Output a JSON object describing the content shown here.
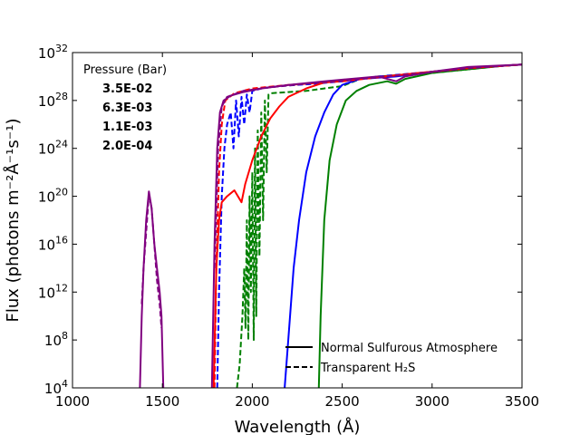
{
  "chart_data": {
    "type": "line",
    "title": "",
    "xlabel": "Wavelength (Å)",
    "ylabel": "Flux (photons m⁻²Å⁻¹s⁻¹)",
    "xlim": [
      1000,
      3500
    ],
    "ylim_log10": [
      4,
      32
    ],
    "yscale": "log",
    "x_ticks": [
      1000,
      1500,
      2000,
      2500,
      3000,
      3500
    ],
    "y_ticks_exp": [
      4,
      8,
      12,
      16,
      20,
      24,
      28,
      32
    ],
    "y_tick_base": "10",
    "legend_pressure": {
      "title": "Pressure (Bar)",
      "entries": [
        {
          "label": "3.5E-02",
          "color": "#008000"
        },
        {
          "label": "6.3E-03",
          "color": "#0000ff"
        },
        {
          "label": "1.1E-03",
          "color": "#ff0000"
        },
        {
          "label": "2.0E-04",
          "color": "#800080"
        }
      ]
    },
    "legend_style": {
      "entries": [
        {
          "label": "Normal Sulfurous Atmosphere",
          "dash": "solid"
        },
        {
          "label": "Transparent H₂S",
          "dash": "dashed"
        }
      ]
    },
    "series": [
      {
        "name": "3.5E-02 normal",
        "color": "#008000",
        "dash": "solid",
        "points": [
          [
            2370,
            4
          ],
          [
            2380,
            10
          ],
          [
            2400,
            18
          ],
          [
            2430,
            23
          ],
          [
            2470,
            26
          ],
          [
            2520,
            28
          ],
          [
            2580,
            28.8
          ],
          [
            2650,
            29.3
          ],
          [
            2750,
            29.6
          ],
          [
            2800,
            29.4
          ],
          [
            2850,
            29.8
          ],
          [
            3000,
            30.3
          ],
          [
            3200,
            30.6
          ],
          [
            3400,
            30.9
          ],
          [
            3500,
            31
          ]
        ]
      },
      {
        "name": "3.5E-02 transparent",
        "color": "#008000",
        "dash": "dashed",
        "points": [
          [
            1915,
            4
          ],
          [
            1930,
            6
          ],
          [
            1945,
            10
          ],
          [
            1955,
            14
          ],
          [
            1962,
            9
          ],
          [
            1970,
            18
          ],
          [
            1978,
            8
          ],
          [
            1985,
            20
          ],
          [
            1992,
            12
          ],
          [
            2000,
            22
          ],
          [
            2008,
            8
          ],
          [
            2015,
            24
          ],
          [
            2022,
            10
          ],
          [
            2030,
            25.5
          ],
          [
            2040,
            15
          ],
          [
            2050,
            27
          ],
          [
            2060,
            18
          ],
          [
            2070,
            28
          ],
          [
            2080,
            22
          ],
          [
            2090,
            28.5
          ],
          [
            2100,
            28.6
          ],
          [
            2200,
            28.7
          ],
          [
            2300,
            28.8
          ],
          [
            2400,
            29
          ],
          [
            2500,
            29.2
          ],
          [
            2600,
            29.8
          ],
          [
            2700,
            30
          ],
          [
            2800,
            30.1
          ],
          [
            3000,
            30.3
          ],
          [
            3200,
            30.6
          ],
          [
            3400,
            30.9
          ],
          [
            3500,
            31
          ]
        ]
      },
      {
        "name": "6.3E-03 normal",
        "color": "#0000ff",
        "dash": "solid",
        "points": [
          [
            2180,
            4
          ],
          [
            2200,
            8
          ],
          [
            2230,
            14
          ],
          [
            2260,
            18
          ],
          [
            2300,
            22
          ],
          [
            2350,
            25
          ],
          [
            2400,
            27
          ],
          [
            2450,
            28.5
          ],
          [
            2500,
            29.3
          ],
          [
            2600,
            29.8
          ],
          [
            2800,
            30
          ],
          [
            3000,
            30.4
          ],
          [
            3200,
            30.7
          ],
          [
            3400,
            30.9
          ],
          [
            3500,
            31
          ]
        ]
      },
      {
        "name": "6.3E-03 transparent",
        "color": "#0000ff",
        "dash": "dashed",
        "points": [
          [
            1805,
            4
          ],
          [
            1815,
            12
          ],
          [
            1830,
            20
          ],
          [
            1845,
            24
          ],
          [
            1860,
            26
          ],
          [
            1880,
            27
          ],
          [
            1895,
            24
          ],
          [
            1910,
            28
          ],
          [
            1925,
            25
          ],
          [
            1940,
            28.3
          ],
          [
            1955,
            26
          ],
          [
            1970,
            28.5
          ],
          [
            1985,
            27
          ],
          [
            2000,
            28.8
          ],
          [
            2050,
            29
          ],
          [
            2150,
            29.2
          ],
          [
            2250,
            29.3
          ],
          [
            2350,
            29.4
          ],
          [
            2500,
            29.6
          ],
          [
            2700,
            30
          ],
          [
            3000,
            30.4
          ],
          [
            3200,
            30.7
          ],
          [
            3500,
            31
          ]
        ]
      },
      {
        "name": "1.1E-03 normal",
        "color": "#ff0000",
        "dash": "solid",
        "points": [
          [
            1785,
            4
          ],
          [
            1800,
            14
          ],
          [
            1815,
            18
          ],
          [
            1830,
            19.5
          ],
          [
            1860,
            20
          ],
          [
            1900,
            20.5
          ],
          [
            1940,
            19.5
          ],
          [
            1960,
            21
          ],
          [
            2000,
            23
          ],
          [
            2050,
            25
          ],
          [
            2100,
            26.5
          ],
          [
            2150,
            27.5
          ],
          [
            2200,
            28.3
          ],
          [
            2300,
            29
          ],
          [
            2400,
            29.5
          ],
          [
            2600,
            29.8
          ],
          [
            2800,
            30.1
          ],
          [
            3000,
            30.4
          ],
          [
            3200,
            30.7
          ],
          [
            3500,
            31
          ]
        ]
      },
      {
        "name": "1.1E-03 transparent",
        "color": "#ff0000",
        "dash": "dashed",
        "points": [
          [
            1790,
            4
          ],
          [
            1800,
            14
          ],
          [
            1815,
            22
          ],
          [
            1830,
            26
          ],
          [
            1850,
            28
          ],
          [
            1900,
            28.6
          ],
          [
            2000,
            29
          ],
          [
            2200,
            29.3
          ],
          [
            2500,
            29.6
          ],
          [
            2800,
            30.1
          ],
          [
            3000,
            30.4
          ],
          [
            3200,
            30.7
          ],
          [
            3500,
            31
          ]
        ]
      },
      {
        "name": "2.0E-04 normal",
        "color": "#800080",
        "dash": "solid",
        "points": [
          [
            1375,
            4
          ],
          [
            1385,
            10
          ],
          [
            1395,
            14
          ],
          [
            1410,
            18
          ],
          [
            1425,
            20.4
          ],
          [
            1440,
            19
          ],
          [
            1455,
            16
          ],
          [
            1470,
            14
          ],
          [
            1485,
            12
          ],
          [
            1495,
            10
          ],
          [
            1505,
            4
          ]
        ]
      },
      {
        "name": "2.0E-04 normal UV",
        "color": "#800080",
        "dash": "solid",
        "points": [
          [
            1775,
            4
          ],
          [
            1790,
            16
          ],
          [
            1805,
            24
          ],
          [
            1820,
            27
          ],
          [
            1840,
            28
          ],
          [
            1880,
            28.4
          ],
          [
            1950,
            28.7
          ],
          [
            2050,
            29
          ],
          [
            2200,
            29.3
          ],
          [
            2400,
            29.6
          ],
          [
            2700,
            30
          ],
          [
            2800,
            29.6
          ],
          [
            2850,
            30
          ],
          [
            3000,
            30.4
          ],
          [
            3200,
            30.8
          ],
          [
            3500,
            31
          ]
        ]
      },
      {
        "name": "2.0E-04 transparent",
        "color": "#800080",
        "dash": "dashed",
        "points": [
          [
            1385,
            11
          ],
          [
            1395,
            14
          ],
          [
            1410,
            17
          ],
          [
            1425,
            20.2
          ],
          [
            1440,
            19
          ],
          [
            1455,
            16
          ],
          [
            1470,
            13
          ],
          [
            1485,
            11
          ],
          [
            1495,
            9
          ]
        ]
      },
      {
        "name": "2.0E-04 transparent UV",
        "color": "#800080",
        "dash": "dashed",
        "points": [
          [
            1790,
            14
          ],
          [
            1810,
            24
          ],
          [
            1830,
            27.5
          ],
          [
            1860,
            28.3
          ],
          [
            1950,
            28.8
          ],
          [
            2100,
            29.1
          ],
          [
            2300,
            29.4
          ],
          [
            2600,
            29.8
          ],
          [
            2900,
            30.2
          ],
          [
            3200,
            30.7
          ],
          [
            3500,
            31
          ]
        ]
      }
    ]
  }
}
